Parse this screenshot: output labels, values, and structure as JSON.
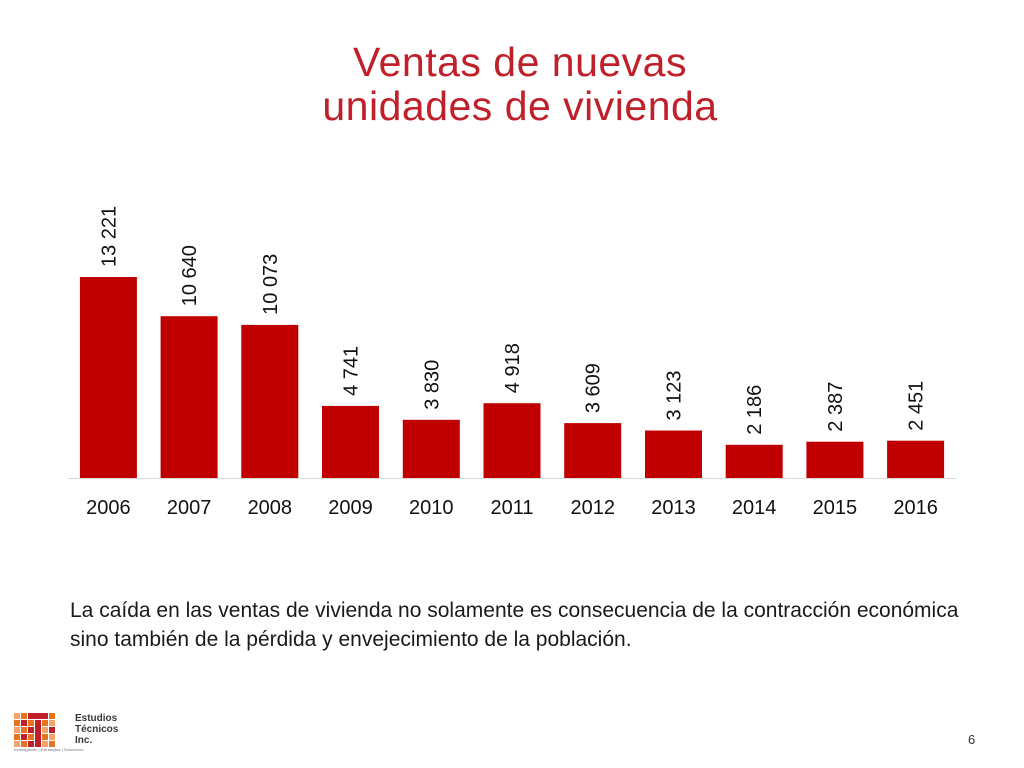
{
  "title_line1": "Ventas de nuevas",
  "title_line2": "unidades de vivienda",
  "chart_data": {
    "type": "bar",
    "categories": [
      "2006",
      "2007",
      "2008",
      "2009",
      "2010",
      "2011",
      "2012",
      "2013",
      "2014",
      "2015",
      "2016"
    ],
    "values": [
      13221,
      10640,
      10073,
      4741,
      3830,
      4918,
      3609,
      3123,
      2186,
      2387,
      2451
    ],
    "value_labels": [
      "13 221",
      "10 640",
      "10 073",
      "4 741",
      "3 830",
      "4 918",
      "3 609",
      "3 123",
      "2 186",
      "2 387",
      "2 451"
    ],
    "title": "Ventas de nuevas unidades de vivienda",
    "xlabel": "",
    "ylabel": "",
    "ylim": [
      0,
      13221
    ],
    "grid": false,
    "legend": "none",
    "bar_color": "#c00000"
  },
  "caption": "La caída en las ventas de vivienda no solamente es consecuencia de la contracción económica sino también de la pérdida y envejecimiento de la población.",
  "logo": {
    "lines": [
      "Estudios",
      "Técnicos",
      "Inc."
    ],
    "tagline": "Investigación | Estrategias | Soluciones"
  },
  "page_number": "6",
  "colors": {
    "title": "#c0202a",
    "bars": "#c00000",
    "logo_orange": "#e8731e",
    "logo_red": "#c0202a"
  }
}
